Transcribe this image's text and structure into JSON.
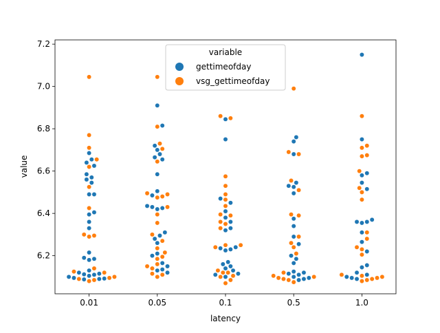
{
  "chart_data": {
    "type": "scatter",
    "subtype": "swarm",
    "xlabel": "latency",
    "ylabel": "value",
    "categories": [
      "0.01",
      "0.05",
      "0.1",
      "0.5",
      "1.0"
    ],
    "ylim": [
      6.02,
      7.22
    ],
    "yticks": [
      6.2,
      6.4,
      6.6,
      6.8,
      7.0,
      7.2
    ],
    "ytick_labels": [
      "6.2",
      "6.4",
      "6.6",
      "6.8",
      "7.0",
      "7.2"
    ],
    "grid": false,
    "legend": {
      "title": "variable",
      "position": "upper-center"
    },
    "series": [
      {
        "name": "gettimeofday",
        "color": "#1f77b4",
        "values": [
          [
            6.088,
            6.09,
            6.092,
            6.095,
            6.1,
            6.105,
            6.11,
            6.112,
            6.115,
            6.12,
            6.13,
            6.18,
            6.185,
            6.19,
            6.215,
            6.33,
            6.36,
            6.395,
            6.405,
            6.49,
            6.49,
            6.545,
            6.56,
            6.57,
            6.585,
            6.625,
            6.64,
            6.655,
            6.685
          ],
          [
            6.12,
            6.13,
            6.135,
            6.15,
            6.165,
            6.2,
            6.21,
            6.26,
            6.28,
            6.295,
            6.31,
            6.42,
            6.425,
            6.43,
            6.435,
            6.485,
            6.505,
            6.585,
            6.655,
            6.665,
            6.68,
            6.7,
            6.72,
            6.815,
            6.91
          ],
          [
            6.1,
            6.11,
            6.115,
            6.13,
            6.14,
            6.15,
            6.16,
            6.17,
            6.225,
            6.23,
            6.235,
            6.24,
            6.32,
            6.33,
            6.36,
            6.38,
            6.41,
            6.45,
            6.47,
            6.75,
            6.845
          ],
          [
            6.085,
            6.09,
            6.095,
            6.1,
            6.11,
            6.115,
            6.12,
            6.125,
            6.165,
            6.185,
            6.2,
            6.255,
            6.29,
            6.34,
            6.375,
            6.495,
            6.525,
            6.53,
            6.545,
            6.68,
            6.74,
            6.76
          ],
          [
            6.09,
            6.095,
            6.1,
            6.11,
            6.12,
            6.145,
            6.155,
            6.22,
            6.265,
            6.31,
            6.355,
            6.36,
            6.36,
            6.37,
            6.515,
            6.545,
            6.58,
            6.59,
            6.75,
            7.15
          ]
        ]
      },
      {
        "name": "vsg_gettimeofday",
        "color": "#ff7f0e",
        "values": [
          [
            6.08,
            6.085,
            6.09,
            6.095,
            6.1,
            6.12,
            6.125,
            6.14,
            6.29,
            6.295,
            6.3,
            6.425,
            6.525,
            6.62,
            6.655,
            6.71,
            6.77,
            7.045
          ],
          [
            6.1,
            6.11,
            6.115,
            6.14,
            6.15,
            6.16,
            6.185,
            6.195,
            6.215,
            6.235,
            6.27,
            6.3,
            6.355,
            6.395,
            6.43,
            6.475,
            6.48,
            6.49,
            6.495,
            6.645,
            6.705,
            6.73,
            6.81,
            7.045
          ],
          [
            6.07,
            6.085,
            6.1,
            6.105,
            6.12,
            6.12,
            6.13,
            6.24,
            6.25,
            6.25,
            6.33,
            6.35,
            6.36,
            6.39,
            6.395,
            6.435,
            6.465,
            6.49,
            6.53,
            6.575,
            6.85,
            6.86
          ],
          [
            6.075,
            6.085,
            6.09,
            6.095,
            6.1,
            6.105,
            6.12,
            6.21,
            6.24,
            6.26,
            6.29,
            6.39,
            6.395,
            6.51,
            6.555,
            6.68,
            6.69,
            6.99
          ],
          [
            6.08,
            6.085,
            6.09,
            6.095,
            6.1,
            6.105,
            6.11,
            6.205,
            6.23,
            6.24,
            6.28,
            6.31,
            6.465,
            6.5,
            6.52,
            6.6,
            6.67,
            6.675,
            6.71,
            6.72,
            6.86
          ]
        ]
      }
    ]
  }
}
